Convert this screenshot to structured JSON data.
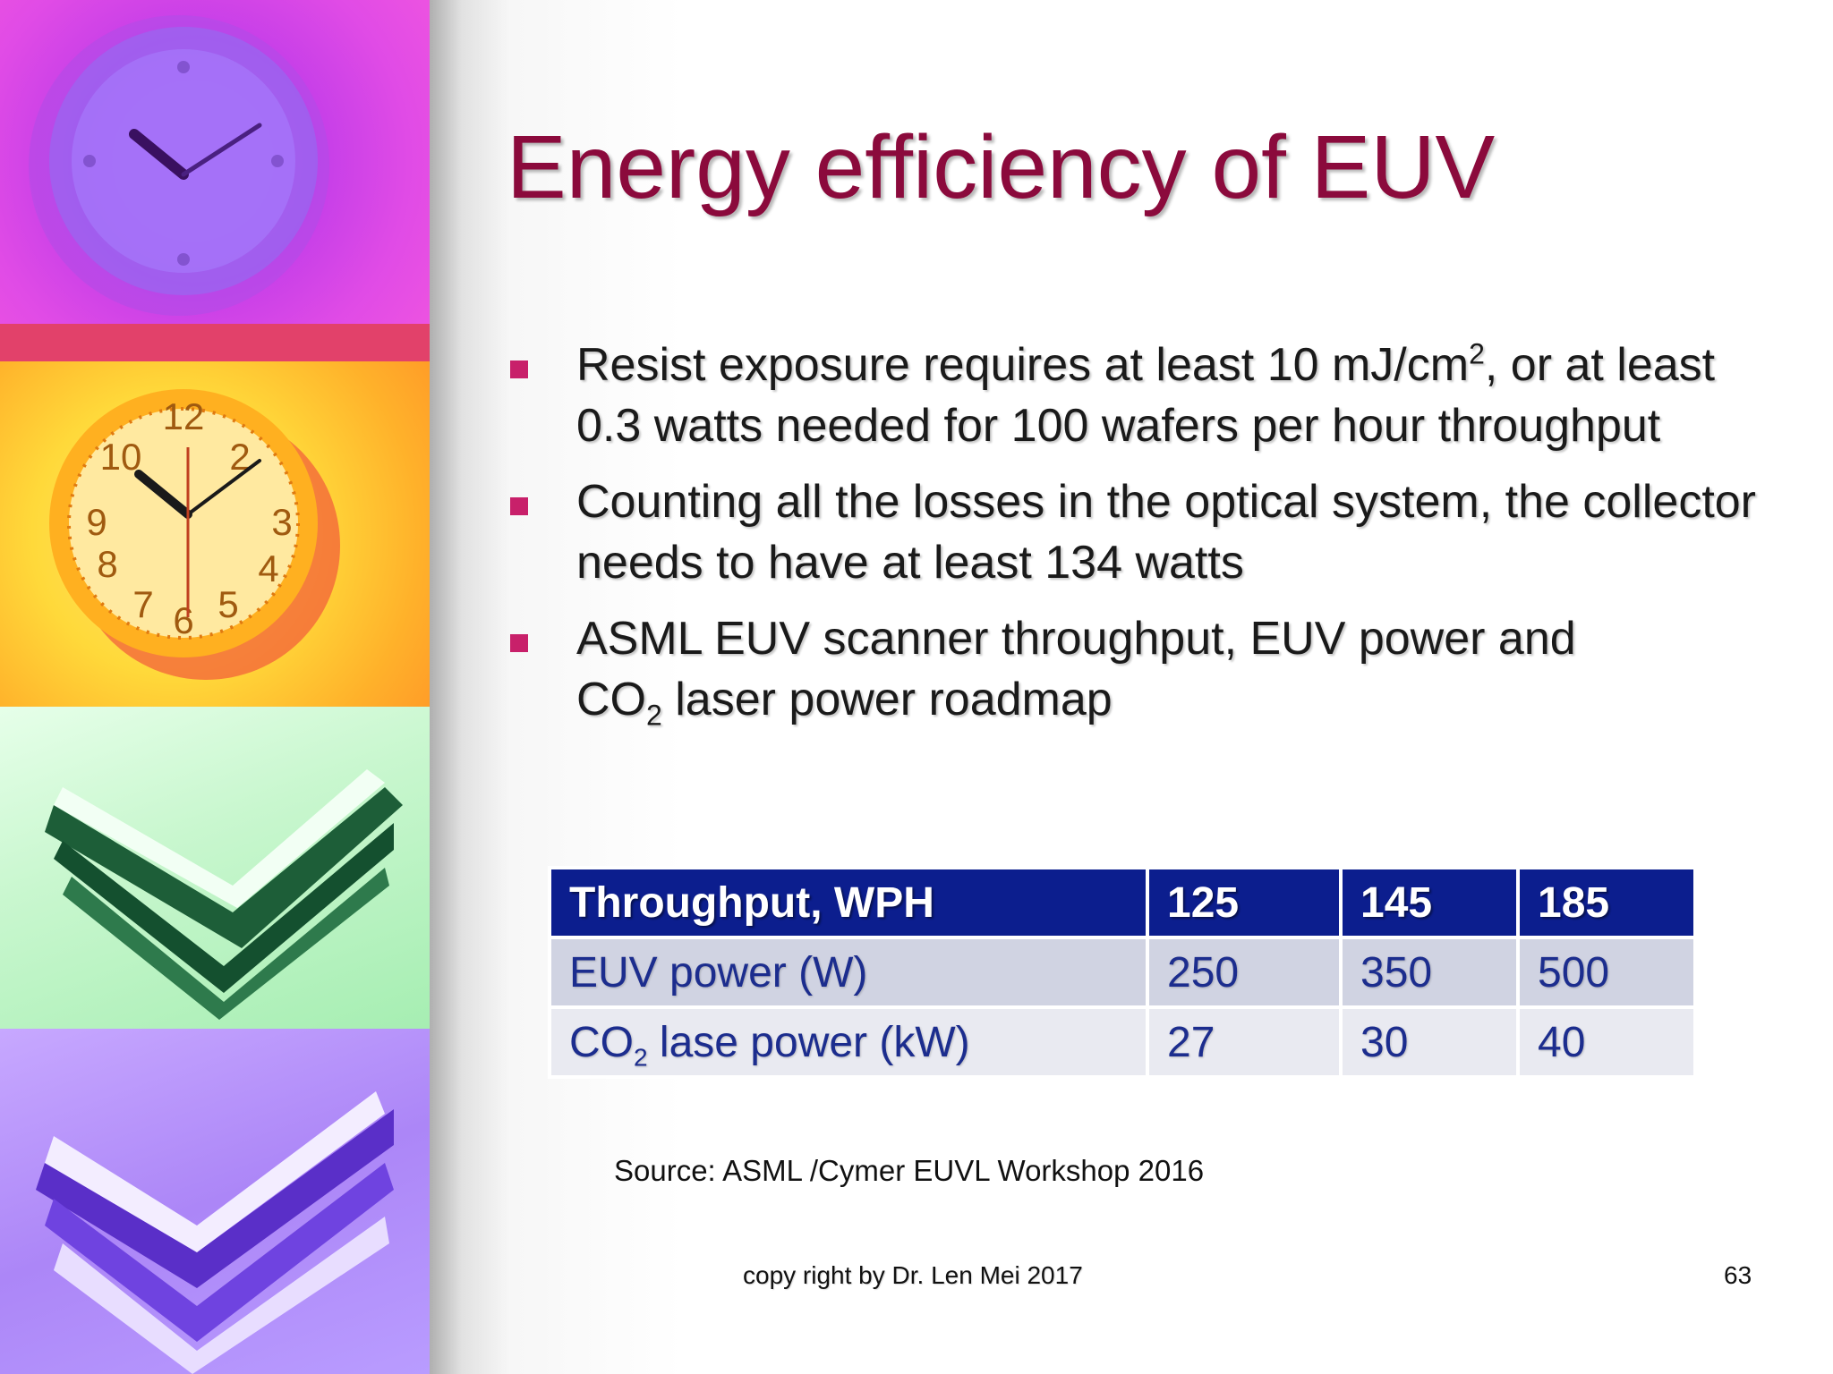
{
  "slide": {
    "title": "Energy efficiency of EUV",
    "bullets": [
      {
        "pre": "Resist exposure requires at least 10 mJ/cm",
        "sup": "2",
        "post": ", or at least 0.3 watts needed for 100 wafers per hour throughput"
      },
      {
        "text": "Counting all the losses in the optical system, the collector needs to have at least 134 watts"
      },
      {
        "line1": "ASML EUV scanner throughput, EUV power and",
        "pre": "CO",
        "sub": "2",
        "post": " laser power roadmap"
      }
    ],
    "table": {
      "header": [
        "Throughput, WPH",
        "125",
        "145",
        "185"
      ],
      "row1": [
        "EUV power (W)",
        "250",
        "350",
        "500"
      ],
      "row2": {
        "label_pre": "CO",
        "label_sub": "2",
        "label_post": " lase power (kW)",
        "values": [
          "27",
          "30",
          "40"
        ]
      }
    },
    "source": "Source: ASML /Cymer EUVL Workshop 2016",
    "footer": "copy right by Dr. Len Mei 2017",
    "page_number": "63"
  },
  "colors": {
    "title": "#8b0a3c",
    "bullet_marker": "#c8206a",
    "table_header": "#0c1e8e",
    "table_text": "#1c2d8e"
  },
  "decor": {
    "left_strip": [
      "purple-clock-icon",
      "orange-clock-icon",
      "green-papers-icon",
      "violet-papers-icon"
    ]
  }
}
